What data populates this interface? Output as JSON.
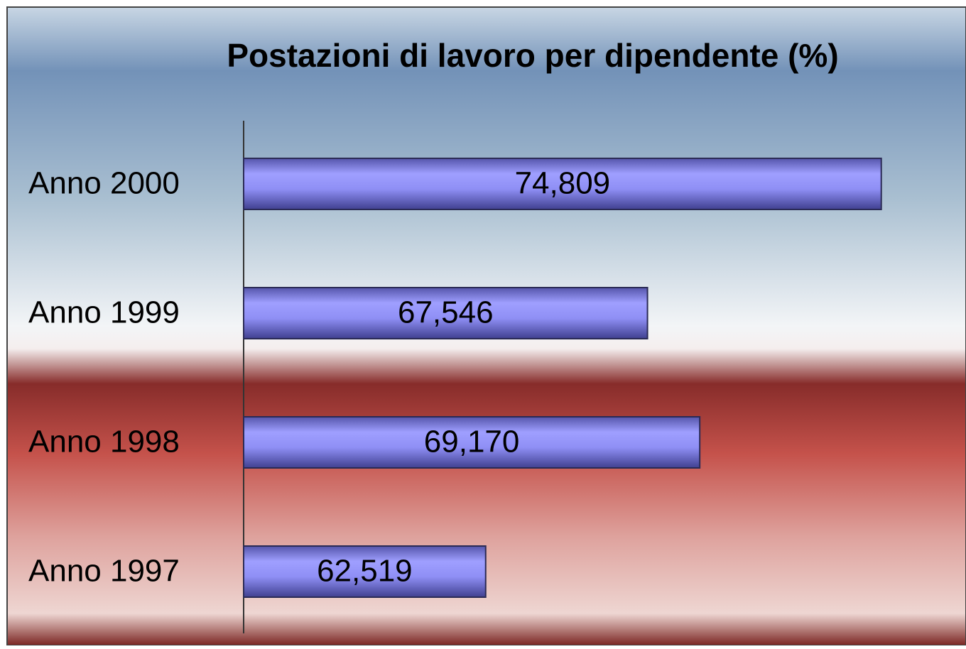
{
  "chart_data": {
    "type": "bar",
    "orientation": "horizontal",
    "title": "Postazioni di lavoro per dipendente (%)",
    "categories": [
      "Anno 2000",
      "Anno 1999",
      "Anno 1998",
      "Anno 1997"
    ],
    "values": [
      74.809,
      67.546,
      69.17,
      62.519
    ],
    "value_labels": [
      "74,809",
      "67,546",
      "69,170",
      "62,519"
    ],
    "color": "#9999ff",
    "xlim": [
      55,
      77
    ]
  }
}
